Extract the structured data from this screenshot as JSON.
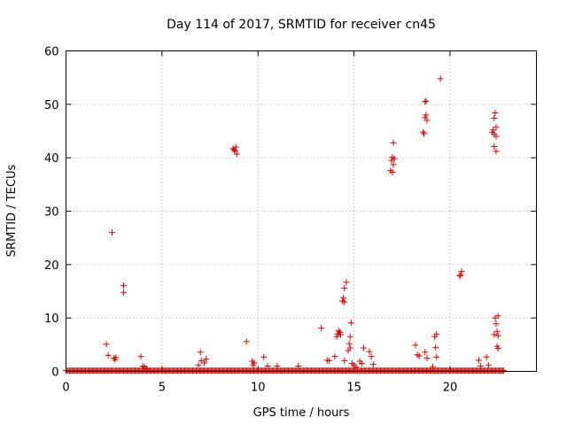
{
  "chart_data": {
    "type": "scatter",
    "title": "Day 114 of 2017, SRMTID for receiver cn45",
    "xlabel": "GPS time / hours",
    "ylabel": "SRMTID / TECUs",
    "xlim": [
      0,
      24.5
    ],
    "ylim": [
      0,
      60
    ],
    "xticks": [
      0,
      5,
      10,
      15,
      20
    ],
    "yticks": [
      0,
      10,
      20,
      30,
      40,
      50,
      60
    ],
    "xtick_labels": [
      "0",
      "5",
      "10",
      "15",
      "20"
    ],
    "ytick_labels": [
      "0",
      "10",
      "20",
      "30",
      "40",
      "50",
      "60"
    ],
    "grid": true,
    "marker": "+",
    "color": "#e00000",
    "baseline": {
      "x_start": 0.0,
      "x_end": 22.8,
      "y": 0.15
    },
    "series": [
      {
        "name": "SRMTID",
        "points": [
          [
            2.1,
            5.1
          ],
          [
            2.2,
            3.0
          ],
          [
            2.4,
            26.0
          ],
          [
            2.5,
            2.5
          ],
          [
            2.55,
            2.2
          ],
          [
            2.6,
            2.6
          ],
          [
            3.0,
            16.1
          ],
          [
            3.0,
            14.8
          ],
          [
            3.9,
            2.8
          ],
          [
            4.0,
            1.0
          ],
          [
            4.1,
            0.8
          ],
          [
            4.2,
            0.5
          ],
          [
            6.9,
            1.2
          ],
          [
            7.0,
            3.6
          ],
          [
            7.05,
            2.0
          ],
          [
            7.2,
            1.6
          ],
          [
            7.3,
            2.3
          ],
          [
            8.7,
            41.7
          ],
          [
            8.8,
            41.3
          ],
          [
            8.85,
            42.0
          ],
          [
            8.9,
            40.7
          ],
          [
            8.75,
            41.5
          ],
          [
            9.4,
            5.6
          ],
          [
            9.7,
            1.9
          ],
          [
            9.8,
            1.6
          ],
          [
            9.75,
            1.2
          ],
          [
            10.3,
            2.7
          ],
          [
            10.5,
            1.0
          ],
          [
            11.0,
            1.0
          ],
          [
            12.1,
            1.0
          ],
          [
            13.3,
            8.1
          ],
          [
            13.6,
            2.1
          ],
          [
            13.7,
            2.0
          ],
          [
            14.0,
            2.8
          ],
          [
            14.1,
            6.5
          ],
          [
            14.15,
            7.0
          ],
          [
            14.2,
            7.6
          ],
          [
            14.3,
            6.9
          ],
          [
            14.25,
            7.3
          ],
          [
            14.4,
            13.2
          ],
          [
            14.45,
            13.8
          ],
          [
            14.5,
            13.0
          ],
          [
            14.5,
            15.6
          ],
          [
            14.6,
            16.7
          ],
          [
            14.5,
            2.0
          ],
          [
            14.7,
            3.9
          ],
          [
            14.75,
            5.2
          ],
          [
            14.8,
            6.5
          ],
          [
            14.8,
            4.4
          ],
          [
            14.85,
            9.1
          ],
          [
            14.9,
            1.5
          ],
          [
            15.0,
            1.2
          ],
          [
            15.1,
            0.8
          ],
          [
            15.3,
            1.9
          ],
          [
            15.4,
            1.5
          ],
          [
            15.5,
            4.4
          ],
          [
            15.8,
            3.7
          ],
          [
            15.9,
            2.8
          ],
          [
            16.0,
            1.3
          ],
          [
            16.9,
            37.6
          ],
          [
            17.0,
            37.3
          ],
          [
            16.95,
            39.5
          ],
          [
            17.0,
            40.1
          ],
          [
            17.05,
            38.7
          ],
          [
            17.1,
            39.8
          ],
          [
            17.05,
            42.8
          ],
          [
            18.2,
            4.9
          ],
          [
            18.3,
            3.1
          ],
          [
            18.4,
            2.9
          ],
          [
            18.6,
            44.8
          ],
          [
            18.65,
            44.5
          ],
          [
            18.7,
            47.5
          ],
          [
            18.75,
            48.0
          ],
          [
            18.7,
            50.5
          ],
          [
            18.75,
            50.6
          ],
          [
            18.8,
            47.0
          ],
          [
            18.7,
            3.6
          ],
          [
            18.8,
            2.5
          ],
          [
            19.1,
            0.9
          ],
          [
            19.2,
            6.5
          ],
          [
            19.3,
            7.0
          ],
          [
            19.25,
            4.5
          ],
          [
            19.3,
            2.7
          ],
          [
            19.5,
            54.8
          ],
          [
            20.5,
            17.9
          ],
          [
            20.6,
            18.7
          ],
          [
            20.55,
            18.0
          ],
          [
            21.5,
            2.1
          ],
          [
            21.6,
            1.0
          ],
          [
            21.9,
            2.7
          ],
          [
            22.0,
            1.2
          ],
          [
            22.2,
            44.8
          ],
          [
            22.25,
            45.2
          ],
          [
            22.3,
            47.4
          ],
          [
            22.35,
            48.4
          ],
          [
            22.4,
            45.7
          ],
          [
            22.3,
            44.4
          ],
          [
            22.4,
            44.0
          ],
          [
            22.3,
            42.1
          ],
          [
            22.4,
            41.2
          ],
          [
            22.35,
            10.0
          ],
          [
            22.4,
            8.9
          ],
          [
            22.45,
            7.5
          ],
          [
            22.5,
            10.4
          ],
          [
            22.5,
            6.7
          ],
          [
            22.45,
            4.7
          ],
          [
            22.5,
            4.3
          ],
          [
            22.3,
            6.9
          ]
        ]
      }
    ]
  }
}
